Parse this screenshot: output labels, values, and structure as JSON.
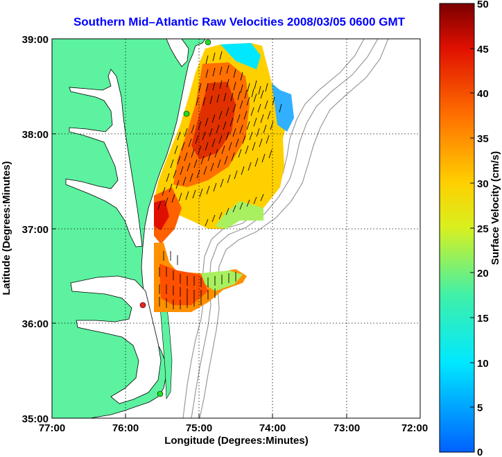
{
  "title": "Southern Mid–Atlantic Raw Velocities 2008/03/05 0600 GMT",
  "xlabel": "Longitude (Degrees:Minutes)",
  "ylabel": "Latitude (Degrees:Minutes)",
  "x_ticks": [
    "77:00",
    "76:00",
    "75:00",
    "74:00",
    "73:00",
    "72:00"
  ],
  "y_ticks": [
    "39:00",
    "38:00",
    "37:00",
    "36:00",
    "35:00"
  ],
  "colorbar": {
    "label": "Surface Velocity (cm/s)",
    "ticks": [
      "0",
      "5",
      "10",
      "15",
      "20",
      "25",
      "30",
      "35",
      "40",
      "45",
      "50"
    ],
    "min": 0,
    "max": 50
  },
  "colors": {
    "land": "#5cf2a0",
    "sea": "#ffffff",
    "title": "#0000ff",
    "bathymetry": "#999999"
  },
  "chart_data": {
    "type": "heatmap",
    "title": "Southern Mid–Atlantic Raw Velocities 2008/03/05 0600 GMT",
    "xlabel": "Longitude (Degrees:Minutes)",
    "ylabel": "Latitude (Degrees:Minutes)",
    "xlim": [
      -77,
      -72
    ],
    "ylim": [
      35,
      39
    ],
    "colorbar_label": "Surface Velocity (cm/s)",
    "colorbar_range": [
      0,
      50
    ],
    "grid": true,
    "stations": [
      {
        "lon": -74.9,
        "lat": 38.97,
        "status": "green"
      },
      {
        "lon": -75.1,
        "lat": 38.22,
        "status": "green"
      },
      {
        "lon": -75.75,
        "lat": 36.2,
        "status": "red"
      },
      {
        "lon": -75.45,
        "lat": 35.25,
        "status": "green"
      }
    ]
  }
}
